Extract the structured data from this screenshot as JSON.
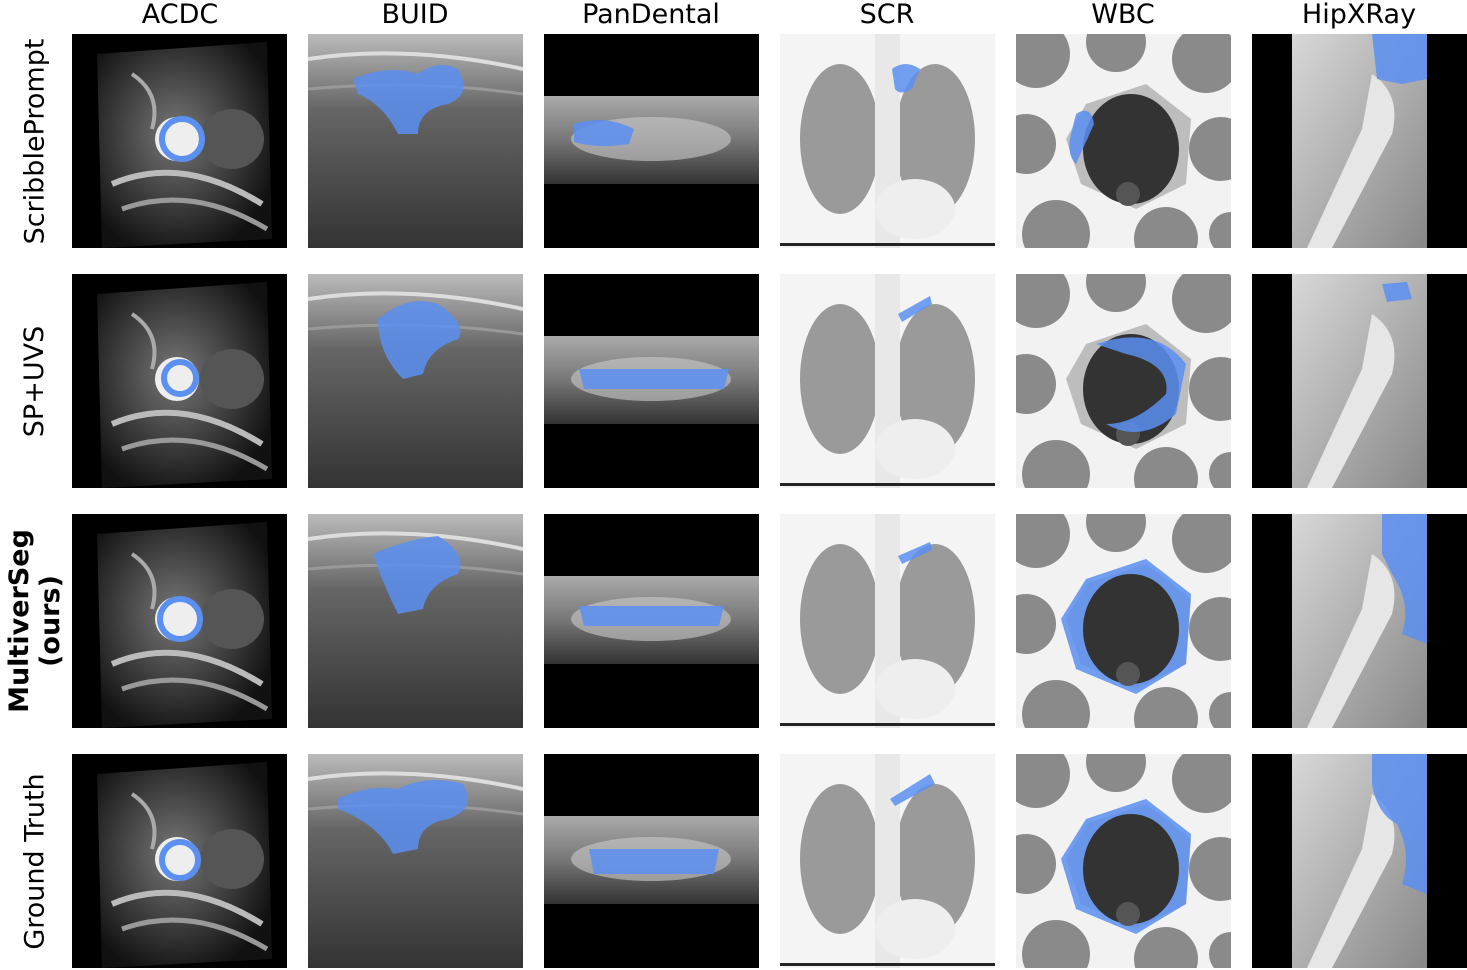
{
  "columns": [
    "ACDC",
    "BUID",
    "PanDental",
    "SCR",
    "WBC",
    "HipXRay"
  ],
  "rows": [
    {
      "label": "ScribblePrompt",
      "bold": false
    },
    {
      "label": "SP+UVS",
      "bold": false
    },
    {
      "label": "MultiverSeg\n(ours)",
      "bold": true
    },
    {
      "label": "Ground Truth",
      "bold": false
    }
  ],
  "colors": {
    "overlay": "#5b8ff0",
    "background": "#ffffff",
    "image_bg": "#000000"
  }
}
